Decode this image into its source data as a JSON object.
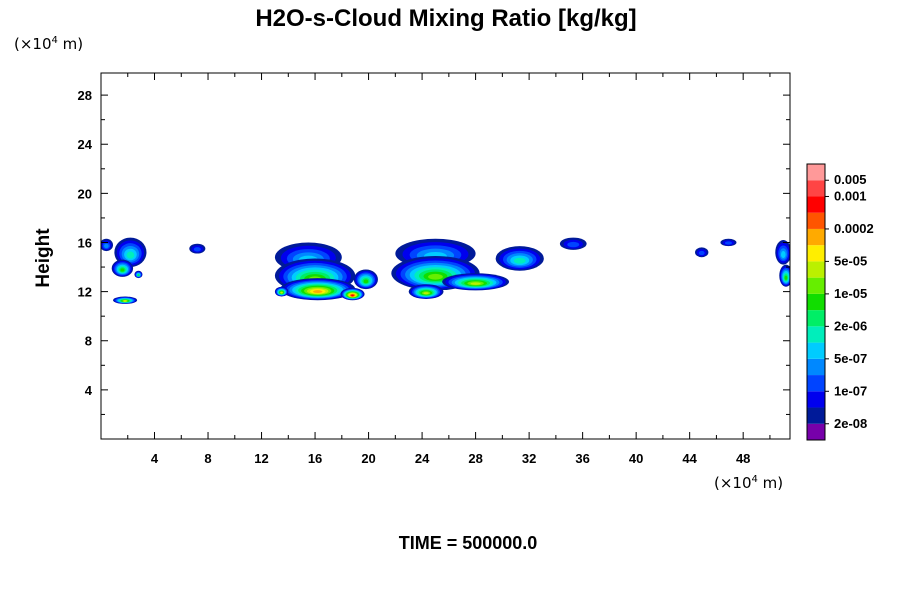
{
  "chart_data": {
    "type": "heatmap",
    "title": "H2O-s-Cloud Mixing Ratio [kg/kg]",
    "ylabel": "Height",
    "x_unit": {
      "prefix": "(×10",
      "power": "4",
      "suffix": " m)"
    },
    "y_unit": {
      "prefix": "(×10",
      "power": "4",
      "suffix": " m)"
    },
    "xlim": [
      0,
      51.5
    ],
    "ylim": [
      0,
      29.8
    ],
    "x_ticks": [
      4,
      8,
      12,
      16,
      20,
      24,
      28,
      32,
      36,
      40,
      44,
      48
    ],
    "y_ticks": [
      4,
      8,
      12,
      16,
      20,
      24,
      28
    ],
    "footer": "TIME = 500000.0",
    "colorbar": {
      "colors": [
        "#7700aa",
        "#001a99",
        "#0000ee",
        "#0044ff",
        "#0088ff",
        "#00ccff",
        "#00eebb",
        "#00ee66",
        "#11dd00",
        "#66ee00",
        "#bbf000",
        "#ffee00",
        "#ffaa00",
        "#ff5500",
        "#ff0000",
        "#ff4444",
        "#ff9999"
      ],
      "labels": [
        {
          "index": 1,
          "text": "2e-08"
        },
        {
          "index": 3,
          "text": "1e-07"
        },
        {
          "index": 5,
          "text": "5e-07"
        },
        {
          "index": 7,
          "text": "2e-06"
        },
        {
          "index": 9,
          "text": "1e-05"
        },
        {
          "index": 11,
          "text": "5e-05"
        },
        {
          "index": 13,
          "text": "0.0002"
        },
        {
          "index": 15,
          "text": "0.001"
        },
        {
          "index": 16,
          "text": "0.005"
        }
      ]
    },
    "cloud_cells": [
      {
        "x": 0.4,
        "y": 15.8,
        "rx": 0.5,
        "ry": 0.5,
        "peak": 4
      },
      {
        "x": 2.2,
        "y": 15.2,
        "rx": 1.2,
        "ry": 1.2,
        "peak": 6
      },
      {
        "x": 1.6,
        "y": 13.9,
        "rx": 0.8,
        "ry": 0.7,
        "peak": 8
      },
      {
        "x": 2.8,
        "y": 13.4,
        "rx": 0.3,
        "ry": 0.3,
        "peak": 7
      },
      {
        "x": 1.8,
        "y": 11.3,
        "rx": 0.9,
        "ry": 0.3,
        "peak": 10
      },
      {
        "x": 7.2,
        "y": 15.5,
        "rx": 0.6,
        "ry": 0.4,
        "peak": 3
      },
      {
        "x": 15.5,
        "y": 14.8,
        "rx": 2.5,
        "ry": 1.2,
        "peak": 5
      },
      {
        "x": 16.0,
        "y": 13.3,
        "rx": 3.0,
        "ry": 1.4,
        "peak": 9
      },
      {
        "x": 16.2,
        "y": 12.2,
        "rx": 2.8,
        "ry": 0.9,
        "peak": 12
      },
      {
        "x": 18.8,
        "y": 11.8,
        "rx": 0.9,
        "ry": 0.5,
        "peak": 14
      },
      {
        "x": 19.8,
        "y": 13.0,
        "rx": 0.9,
        "ry": 0.8,
        "peak": 8
      },
      {
        "x": 13.5,
        "y": 12.0,
        "rx": 0.5,
        "ry": 0.4,
        "peak": 10
      },
      {
        "x": 25.0,
        "y": 15.1,
        "rx": 3.0,
        "ry": 1.2,
        "peak": 5
      },
      {
        "x": 25.0,
        "y": 13.5,
        "rx": 3.3,
        "ry": 1.4,
        "peak": 9
      },
      {
        "x": 28.0,
        "y": 12.8,
        "rx": 2.5,
        "ry": 0.7,
        "peak": 10
      },
      {
        "x": 24.3,
        "y": 12.0,
        "rx": 1.3,
        "ry": 0.6,
        "peak": 10
      },
      {
        "x": 31.3,
        "y": 14.7,
        "rx": 1.8,
        "ry": 1.0,
        "peak": 6
      },
      {
        "x": 35.3,
        "y": 15.9,
        "rx": 1.0,
        "ry": 0.5,
        "peak": 3
      },
      {
        "x": 44.9,
        "y": 15.2,
        "rx": 0.5,
        "ry": 0.4,
        "peak": 3
      },
      {
        "x": 46.9,
        "y": 16.0,
        "rx": 0.6,
        "ry": 0.3,
        "peak": 3
      },
      {
        "x": 51.0,
        "y": 15.2,
        "rx": 0.6,
        "ry": 1.0,
        "peak": 5
      },
      {
        "x": 51.2,
        "y": 13.3,
        "rx": 0.5,
        "ry": 0.9,
        "peak": 8
      }
    ]
  }
}
